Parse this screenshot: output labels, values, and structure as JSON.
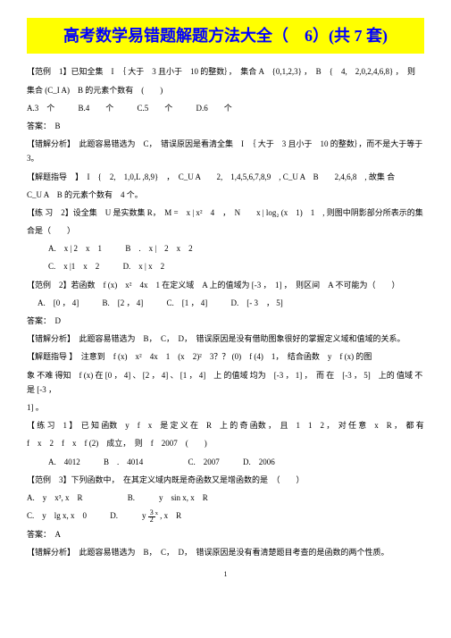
{
  "title": "高考数学易错题解题方法大全（　6）(共 7 套)",
  "q1": {
    "stem1": "【范例　1】已知全集　I　｛ 大于　3 且小于　10 的整数｝，　集合 A　{0,1,2,3} ，　B　{　4,　2,0,2,4,6,8} ，　则",
    "stem2": "集合 (C_I A)　B 的元素个数有　(　　)",
    "optA": "A.3　个",
    "optB": "B.4　　个",
    "optC": "C.5　　个",
    "optD": "D.6　　个",
    "ans": "答案：　B",
    "ana": "【错解分析】　此题容易错选为　C，　错误原因是看清全集　I　｛ 大于　3 且小于　10 的整数｝，而不是大于等于　3。",
    "gui1": "【解题指导　】　I　{　2,　1,0,L ,8,9}　，　C_U A　　2,　1,4,5,6,7,8,9　, C_U A　B　　2,4,6,8　, 故集 合",
    "gui2": "C_U A　B 的元素个数有　4 个。"
  },
  "p1": {
    "stem1": "【练 习　2】设全集　U 是实数集 R，　M =　x | x²　4　，　N　　x | log₂ (x　1)　1　, 则图中阴影部分所表示的集",
    "stem2": "合是（　　）",
    "optA": "A.　x | 2　x　1",
    "optB": "B　.　x |　2　x　2",
    "optC": "C.　x |1　x　2",
    "optD": "D.　x | x　2"
  },
  "q2": {
    "stem": "【范例　2】若函数　f (x)　x²　4x　1 在定义域　A 上的值域为 [-3 ，　1] ，　则区间　A 不可能为（　　）",
    "optA": "A.　[0 ， 4]",
    "optB": "B.　[2 ， 4]",
    "optC": "C.　[1 ， 4]",
    "optD": "D.　[- 3　， 5]",
    "ans": "答案：　D",
    "ana": "【错解分析】　此题容易错选为　B，　C，　D，　错误原因是没有借助图象很好的掌握定义域和值域的关系。",
    "gui1": "【解题指导 】　注意到　f (x)　x²　4x　1　(x　2)²　3？？ (0)　f (4)　1，　结合函数　y　f (x) 的图",
    "gui2": "象 不难 得知　f (x) 在 [0 ， 4] 、 [2 ， 4] 、 [1 ， 4]　上 的值域 均为　[-3 ， 1] ，　而 在　[-3 ， 5]　上的 值域 不是 [-3 ，",
    "gui3": "1] 。"
  },
  "p2": {
    "stem1": "【 练 习　1 】　已 知 函数　y　f　x　是 定 义 在　R　上 的 奇 函数 ，　且　1　1　2 ，　对 任 意　x　R ，　都 有",
    "stem2": "f　x　2　f　x　f (2)　成立，　则　f　2007　(　　)",
    "optA": "A.　4012",
    "optB": "B　.　4014",
    "optC": "C.　2007",
    "optD": "D.　2006"
  },
  "q3": {
    "stem": "【范例　3】下列函数中，　在其定义域内既是奇函数又是增函数的是　（　　）",
    "optA": "A.　y　x³, x　R",
    "optB": "B.　　　y　sin x, x　R",
    "optC": "C.　y　lg x, x　0",
    "optD": "D.　　　y",
    "optD2": ", x　R",
    "ans": "答案：　A",
    "ana": "【错解分析】　此题容易错选为　B，　C，　D，　错误原因是没有看清楚题目考查的是函数的两个性质。"
  },
  "pagenum": "1"
}
